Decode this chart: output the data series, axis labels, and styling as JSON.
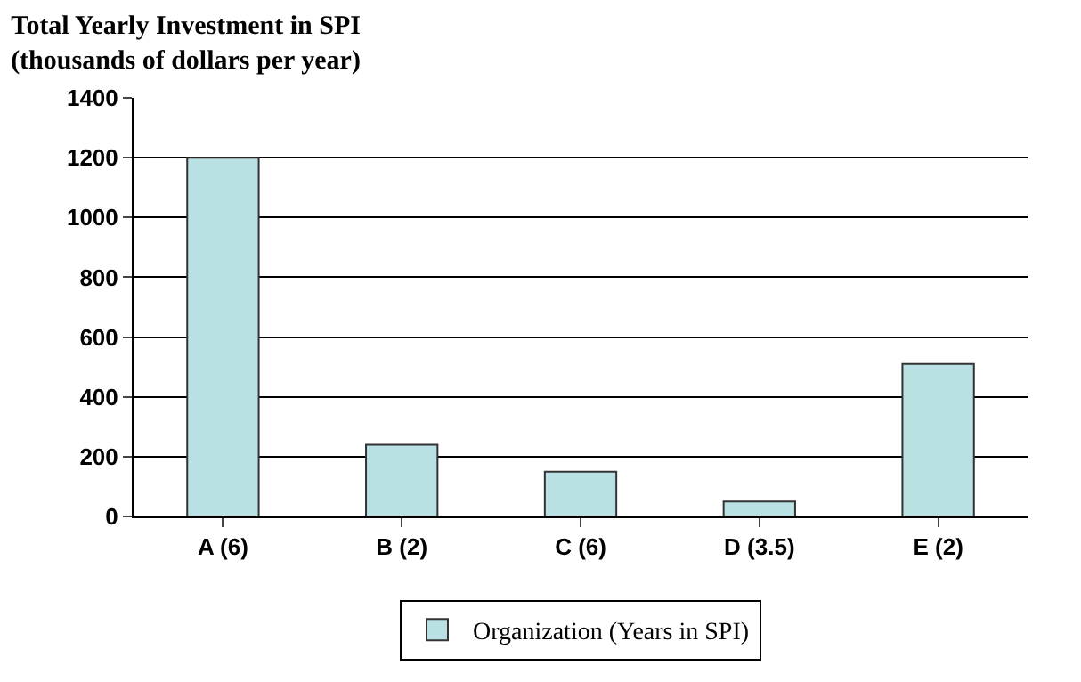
{
  "chart_data": {
    "type": "bar",
    "title": "Total Yearly Investment in SPI",
    "subtitle": "(thousands of dollars per year)",
    "categories": [
      "A (6)",
      "B (2)",
      "C (6)",
      "D (3.5)",
      "E (2)"
    ],
    "series": [
      {
        "name": "Organization (Years in SPI)",
        "color": "#b9e0e3",
        "values": [
          1200,
          240,
          150,
          50,
          510
        ]
      }
    ],
    "ylim": [
      0,
      1400
    ],
    "yticks": [
      0,
      200,
      400,
      600,
      800,
      1000,
      1200,
      1400
    ],
    "grid": "y",
    "legend": "bottom"
  }
}
